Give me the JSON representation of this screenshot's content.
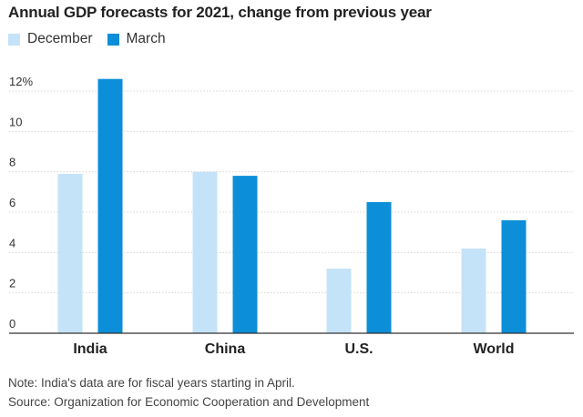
{
  "chart_data": {
    "type": "bar",
    "title": "Annual GDP forecasts for 2021, change from previous year",
    "categories": [
      "India",
      "China",
      "U.S.",
      "World"
    ],
    "series": [
      {
        "name": "December",
        "values": [
          7.9,
          8.0,
          3.2,
          4.2
        ],
        "color": "#c5e3f8"
      },
      {
        "name": "March",
        "values": [
          12.6,
          7.8,
          6.5,
          5.6
        ],
        "color": "#0c8ed9"
      }
    ],
    "ytick_labels": [
      "0",
      "2",
      "4",
      "6",
      "8",
      "10",
      "12%"
    ],
    "ylim": [
      0,
      12
    ],
    "grid": true,
    "legend_position": "top-left",
    "xlabel": "",
    "ylabel": ""
  },
  "notes": {
    "note": "Note: India's data are for fiscal years starting in April.",
    "source": "Source: Organization for Economic Cooperation and Development"
  }
}
